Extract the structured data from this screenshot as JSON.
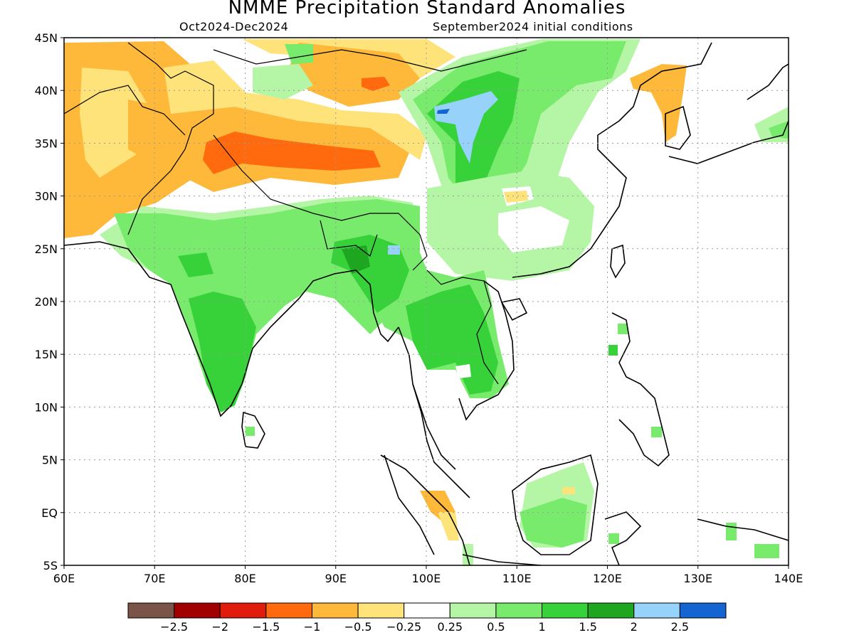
{
  "title": "NMME Precipitation Standard Anomalies",
  "subtitle_left": "Oct2024-Dec2024",
  "subtitle_right": "September2024 initial conditions",
  "map": {
    "lon_range": [
      60,
      140
    ],
    "lat_range": [
      -5,
      45
    ],
    "lat_labels": [
      "45N",
      "40N",
      "35N",
      "30N",
      "25N",
      "20N",
      "15N",
      "10N",
      "5N",
      "EQ",
      "5S"
    ],
    "lat_values": [
      45,
      40,
      35,
      30,
      25,
      20,
      15,
      10,
      5,
      0,
      -5
    ],
    "lon_labels": [
      "60E",
      "70E",
      "80E",
      "90E",
      "100E",
      "110E",
      "120E",
      "130E",
      "140E"
    ],
    "lon_values": [
      60,
      70,
      80,
      90,
      100,
      110,
      120,
      130,
      140
    ],
    "gridlines": "dotted"
  },
  "colorbar": {
    "labels": [
      "-2.5",
      "-2",
      "-1.5",
      "-1",
      "-0.5",
      "-0.25",
      "0.25",
      "0.5",
      "1",
      "1.5",
      "2",
      "2.5"
    ],
    "colors": [
      "#7a5448",
      "#a00000",
      "#e01c0c",
      "#ff6a0e",
      "#feb83a",
      "#fee27a",
      "#ffffff",
      "#b5f6a6",
      "#78ea6c",
      "#37d13a",
      "#1ea621",
      "#96d2fa",
      "#1464d2"
    ]
  },
  "regions": [
    {
      "name": "west-asia-dry",
      "color": "#feb83a",
      "lon": [
        60,
        72
      ],
      "lat": [
        26,
        44
      ]
    },
    {
      "name": "pakistan-dry-light",
      "color": "#fee27a",
      "lon": [
        66,
        74
      ],
      "lat": [
        30,
        38
      ]
    },
    {
      "name": "tibet-dry",
      "color": "#feb83a",
      "lon": [
        76,
        97
      ],
      "lat": [
        30,
        37
      ]
    },
    {
      "name": "kashmir-tibet-strong-dry",
      "color": "#ff6a0e",
      "lon": [
        76,
        94
      ],
      "lat": [
        32,
        35
      ]
    },
    {
      "name": "xinjiang-dry-light",
      "color": "#fee27a",
      "lon": [
        68,
        102
      ],
      "lat": [
        37,
        45
      ]
    },
    {
      "name": "mongolia-dry",
      "color": "#feb83a",
      "lon": [
        83,
        98
      ],
      "lat": [
        39,
        44
      ]
    },
    {
      "name": "mongolia-dry-core",
      "color": "#ff6a0e",
      "lon": [
        91,
        93
      ],
      "lat": [
        40,
        41
      ]
    },
    {
      "name": "north-china-wet",
      "color": "#78ea6c",
      "lon": [
        98,
        123
      ],
      "lat": [
        34,
        45
      ]
    },
    {
      "name": "north-china-wet-core",
      "color": "#37d13a",
      "lon": [
        101,
        109
      ],
      "lat": [
        28,
        42
      ]
    },
    {
      "name": "gansu-very-wet",
      "color": "#96d2fa",
      "lon": [
        100,
        105
      ],
      "lat": [
        33,
        40
      ]
    },
    {
      "name": "korea-dry",
      "color": "#feb83a",
      "lon": [
        125,
        129
      ],
      "lat": [
        37,
        42
      ]
    },
    {
      "name": "south-china-wet",
      "color": "#b5f6a6",
      "lon": [
        95,
        120
      ],
      "lat": [
        22,
        30
      ]
    },
    {
      "name": "india-wet",
      "color": "#78ea6c",
      "lon": [
        66,
        98
      ],
      "lat": [
        18,
        30
      ]
    },
    {
      "name": "peninsula-wet",
      "color": "#37d13a",
      "lon": [
        73,
        81
      ],
      "lat": [
        11,
        20
      ]
    },
    {
      "name": "myanmar-wet",
      "color": "#78ea6c",
      "lon": [
        92,
        108
      ],
      "lat": [
        11,
        25
      ]
    },
    {
      "name": "indochina-wet-core",
      "color": "#37d13a",
      "lon": [
        98,
        108
      ],
      "lat": [
        12,
        22
      ]
    },
    {
      "name": "borneo-wet",
      "color": "#78ea6c",
      "lon": [
        110,
        119
      ],
      "lat": [
        -3,
        3
      ]
    },
    {
      "name": "sumatra-dry",
      "color": "#feb83a",
      "lon": [
        99,
        104
      ],
      "lat": [
        -2,
        1
      ]
    }
  ]
}
